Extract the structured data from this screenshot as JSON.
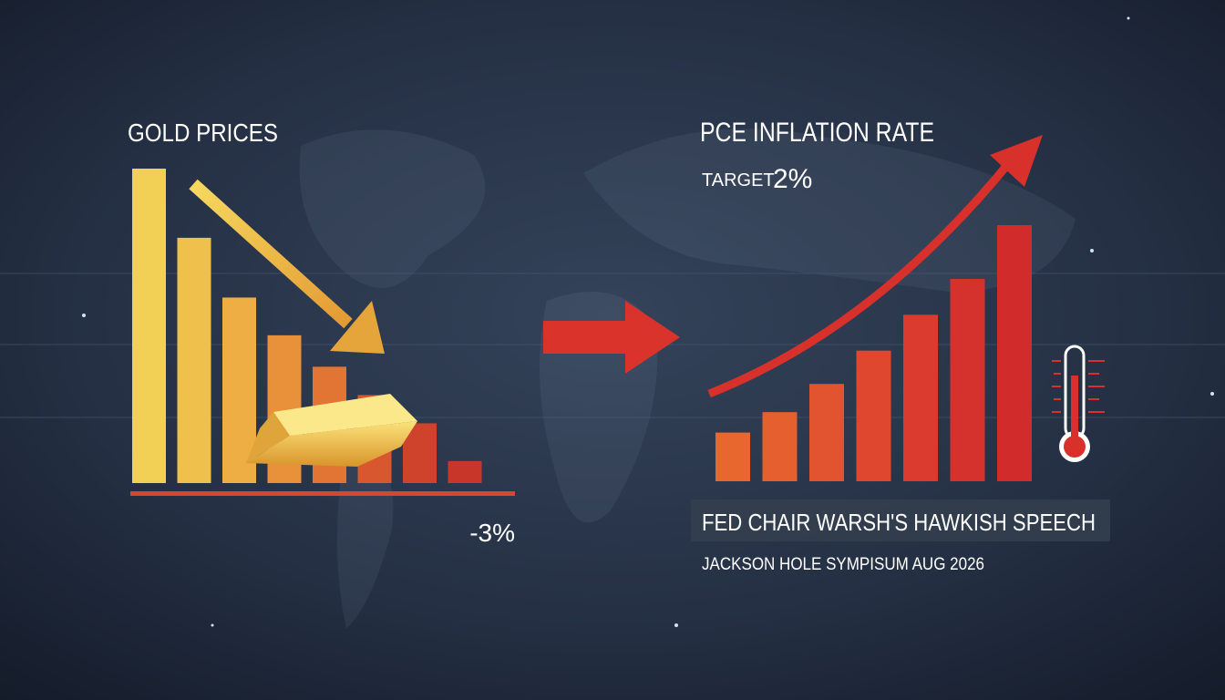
{
  "chart_data": [
    {
      "type": "bar",
      "title": "GOLD PRICES",
      "values": [
        100,
        78,
        59,
        47,
        37,
        28,
        19,
        7
      ],
      "colors": [
        "#f2cf55",
        "#f0c04c",
        "#eeae44",
        "#e9903a",
        "#e27534",
        "#d9572f",
        "#cf432c",
        "#c8362a"
      ],
      "ylim": [
        0,
        100
      ],
      "annotations": [
        "-3%"
      ]
    },
    {
      "type": "bar",
      "title": "PCE INFLATION RATE",
      "values": [
        19,
        27,
        38,
        51,
        65,
        79,
        100
      ],
      "colors": [
        "#e8672f",
        "#e55f2f",
        "#e2532f",
        "#df472f",
        "#da3b2e",
        "#d5322d",
        "#d22b2b"
      ],
      "ylim": [
        0,
        100
      ],
      "annotations": [
        "TARGET",
        "2%"
      ]
    }
  ],
  "caption": {
    "headline": "FED CHAIR WARSH'S HAWKISH SPEECH",
    "subline": "JACKSON HOLE SYMPISUM AUG 2026"
  }
}
